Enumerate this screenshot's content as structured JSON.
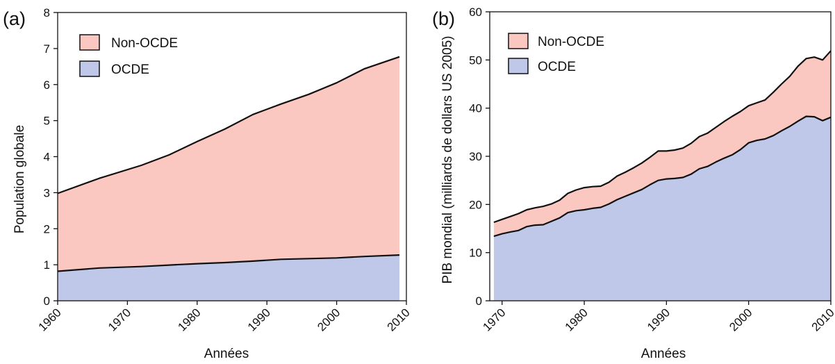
{
  "colors": {
    "non_oecd": "#fbc7c1",
    "oecd": "#bfc8e8",
    "outline": "#111111"
  },
  "chart_data": [
    {
      "panel": "(a)",
      "type": "area",
      "stacked": true,
      "xlabel": "Années",
      "ylabel": "Population globale",
      "xlim": [
        1960,
        2010
      ],
      "ylim": [
        0,
        8
      ],
      "xticks": [
        1960,
        1970,
        1980,
        1990,
        2000,
        2010
      ],
      "yticks": [
        0,
        1,
        2,
        3,
        4,
        5,
        6,
        7,
        8
      ],
      "legend": {
        "position": "top-left",
        "entries": [
          "Non-OCDE",
          "OCDE"
        ]
      },
      "x": [
        1960,
        1966,
        1972,
        1976,
        1980,
        1984,
        1988,
        1992,
        1996,
        2000,
        2004,
        2009
      ],
      "series": [
        {
          "name": "OCDE",
          "color": "#bfc8e8",
          "values": [
            0.82,
            0.91,
            0.95,
            0.99,
            1.03,
            1.06,
            1.1,
            1.15,
            1.17,
            1.19,
            1.23,
            1.27
          ]
        },
        {
          "name": "Non-OCDE",
          "color": "#fbc7c1",
          "values": [
            2.16,
            2.49,
            2.81,
            3.06,
            3.39,
            3.71,
            4.07,
            4.31,
            4.56,
            4.86,
            5.21,
            5.5
          ]
        }
      ]
    },
    {
      "panel": "(b)",
      "type": "area",
      "stacked": true,
      "xlabel": "Années",
      "ylabel": "PIB mondial (milliards de dollars US 2005)",
      "xlim": [
        1968.5,
        2010
      ],
      "ylim": [
        0,
        60
      ],
      "xticks": [
        1970,
        1980,
        1990,
        2000,
        2010
      ],
      "yticks": [
        0,
        10,
        20,
        30,
        40,
        50,
        60
      ],
      "legend": {
        "position": "top-left",
        "entries": [
          "Non-OCDE",
          "OCDE"
        ]
      },
      "x": [
        1969,
        1970,
        1971,
        1972,
        1973,
        1974,
        1975,
        1976,
        1977,
        1978,
        1979,
        1980,
        1981,
        1982,
        1983,
        1984,
        1985,
        1986,
        1987,
        1988,
        1989,
        1990,
        1991,
        1992,
        1993,
        1994,
        1995,
        1996,
        1997,
        1998,
        1999,
        2000,
        2001,
        2002,
        2003,
        2004,
        2005,
        2006,
        2007,
        2008,
        2009,
        2010
      ],
      "series": [
        {
          "name": "OCDE",
          "color": "#bfc8e8",
          "values": [
            13.4,
            13.9,
            14.3,
            14.6,
            15.4,
            15.7,
            15.8,
            16.5,
            17.2,
            18.3,
            18.7,
            18.9,
            19.2,
            19.4,
            20.1,
            21.0,
            21.7,
            22.4,
            23.1,
            24.1,
            25.0,
            25.3,
            25.4,
            25.6,
            26.3,
            27.4,
            27.9,
            28.8,
            29.6,
            30.3,
            31.4,
            32.8,
            33.3,
            33.6,
            34.3,
            35.3,
            36.2,
            37.3,
            38.3,
            38.2,
            37.4,
            38.1
          ]
        },
        {
          "name": "Non-OCDE",
          "color": "#fbc7c1",
          "values": [
            2.9,
            3.0,
            3.2,
            3.5,
            3.5,
            3.6,
            3.8,
            3.6,
            3.7,
            4.0,
            4.3,
            4.6,
            4.5,
            4.4,
            4.5,
            4.9,
            5.0,
            5.2,
            5.5,
            5.7,
            6.1,
            5.8,
            5.9,
            6.1,
            6.4,
            6.7,
            6.9,
            7.2,
            7.6,
            8.0,
            7.9,
            7.7,
            7.8,
            8.1,
            9.0,
            9.7,
            10.4,
            11.4,
            12.0,
            12.4,
            12.6,
            13.8
          ]
        }
      ]
    }
  ]
}
